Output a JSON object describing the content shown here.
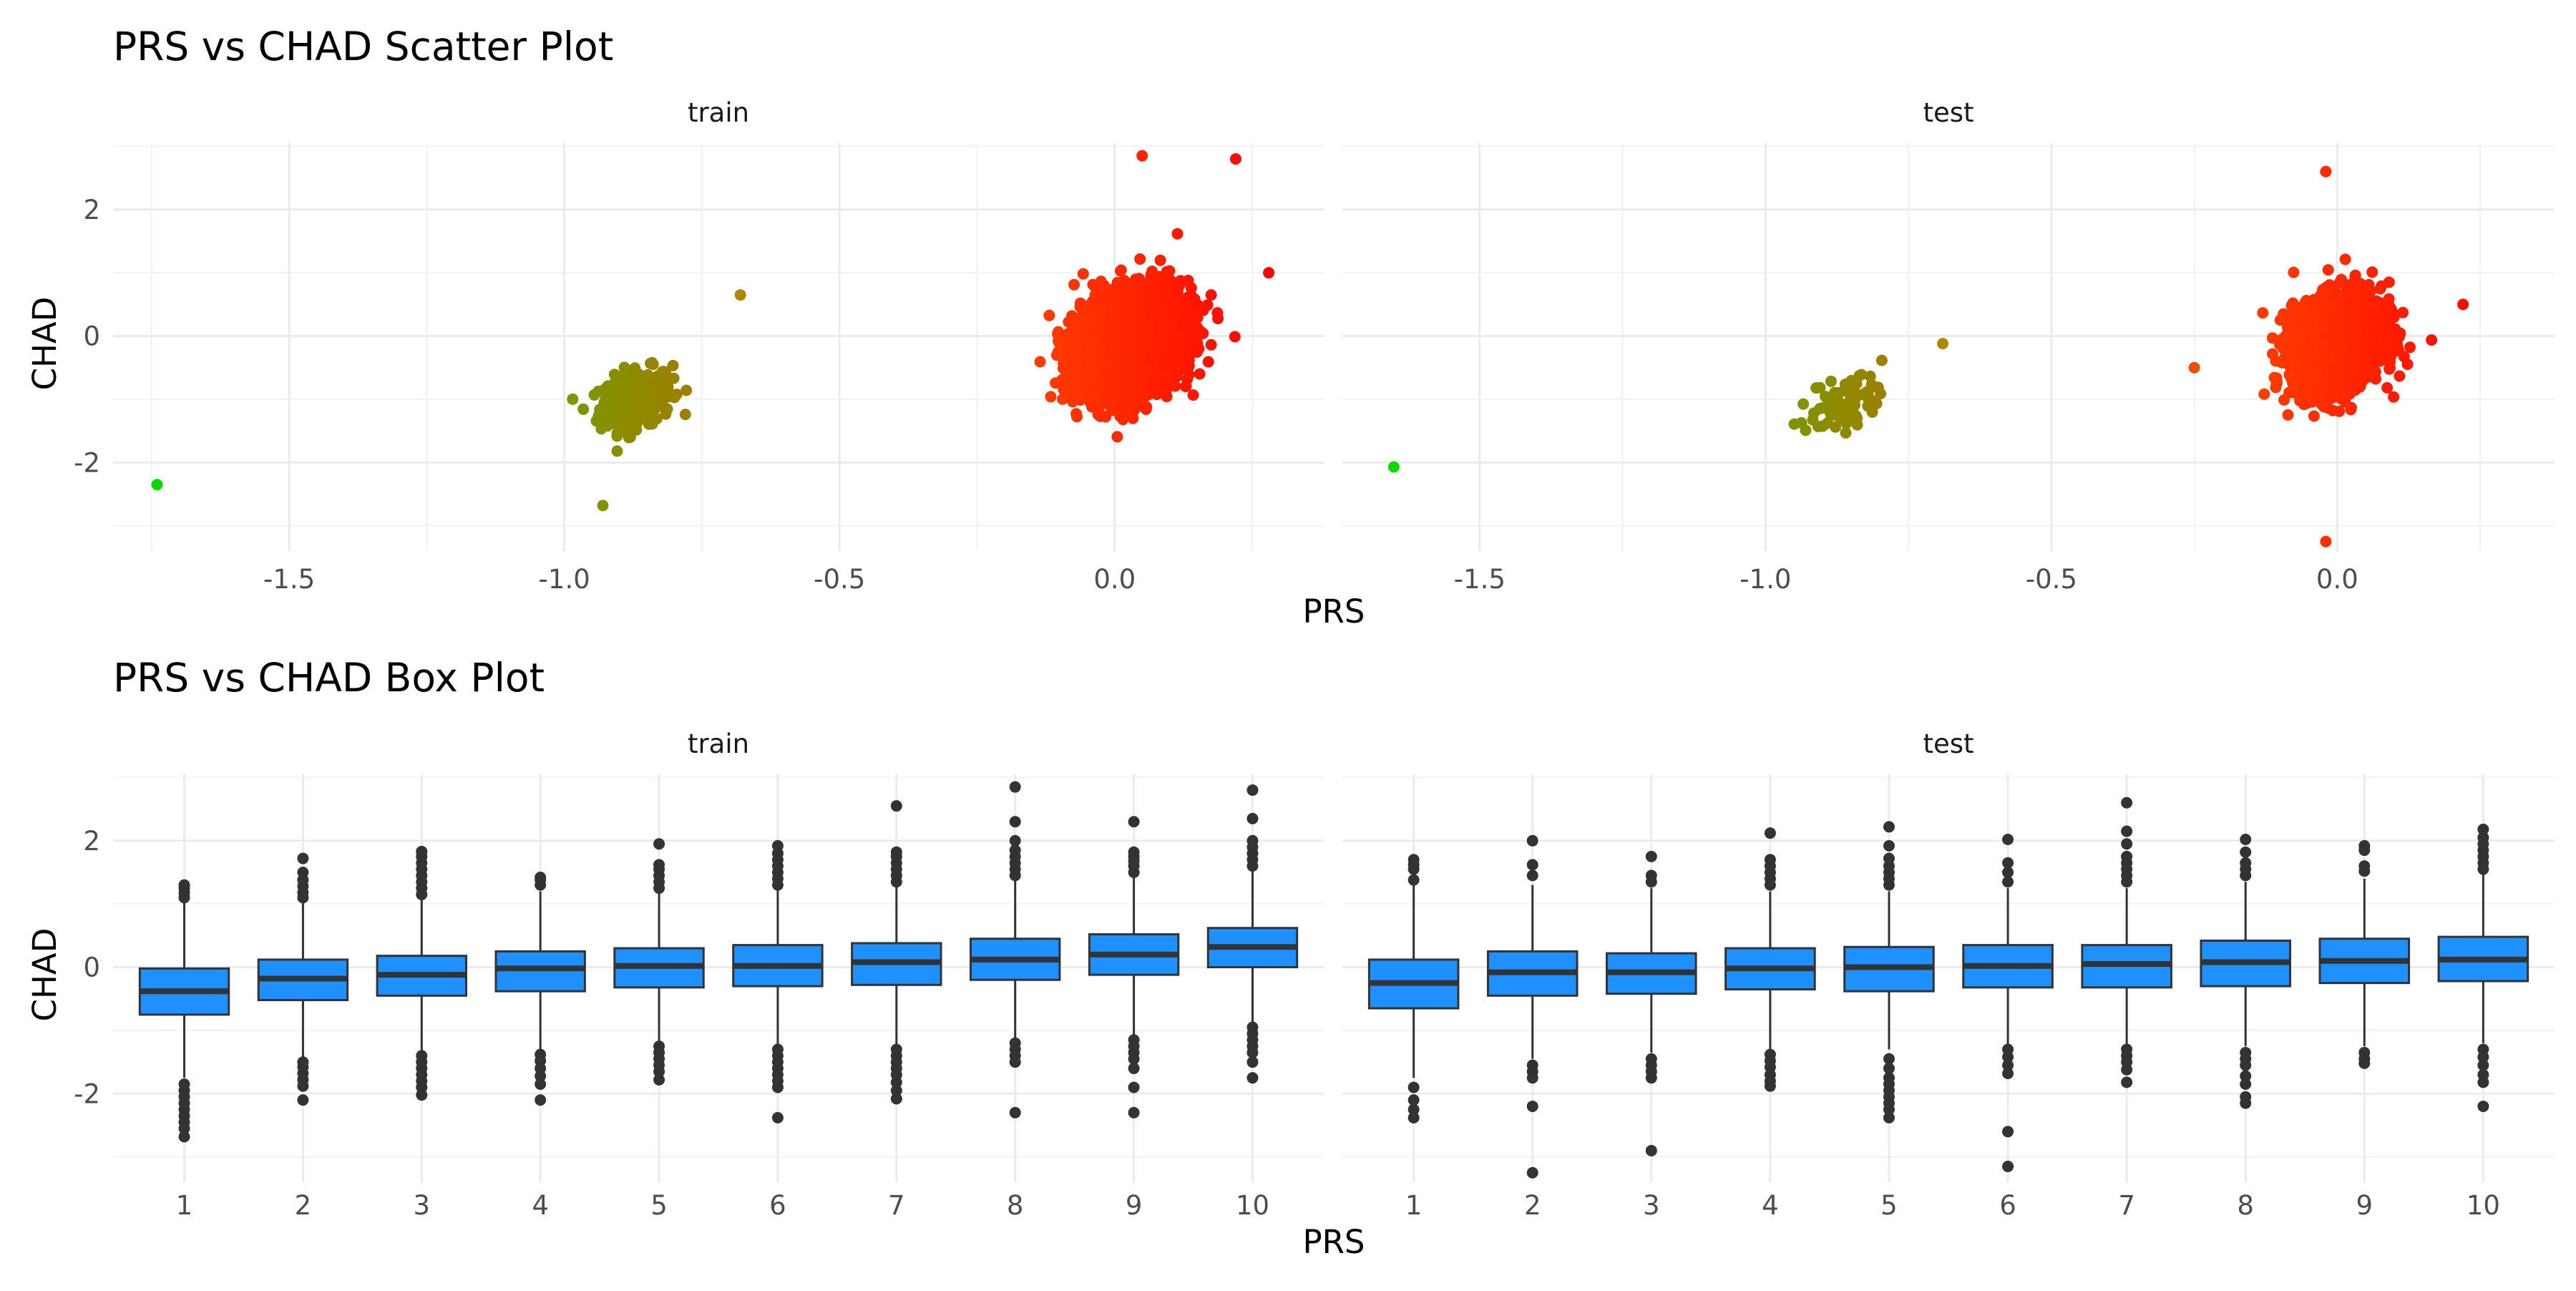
{
  "scatter_title": "PRS vs CHAD Scatter Plot",
  "box_title": "PRS vs CHAD Box Plot",
  "panels": [
    "train",
    "test"
  ],
  "xlabel": "PRS",
  "ylabel": "CHAD",
  "colors": {
    "box_fill": "#1E90FF",
    "box_line": "#333333",
    "outlier": "#333333",
    "grid": "#ebebeb",
    "gradient_low": "#00FF00",
    "gradient_high": "#FF0000"
  },
  "chart_data": [
    {
      "type": "scatter",
      "title": "PRS vs CHAD Scatter Plot",
      "xlabel": "PRS",
      "ylabel": "CHAD",
      "facets": [
        "train",
        "test"
      ],
      "color_mapping": "gradient by PRS (green at low PRS to red at high PRS), no legend shown",
      "xticks": [
        "-1.5",
        "-1.0",
        "-0.5",
        "0.0"
      ],
      "yticks": [
        "-2",
        "0",
        "2"
      ],
      "xlim": [
        -1.78,
        0.38
      ],
      "ylim": [
        -3.4,
        3.05
      ],
      "series": [
        {
          "facet": "train",
          "clusters": [
            {
              "center": [
                -1.74,
                -2.35
              ],
              "spread": [
                0.0,
                0.0
              ],
              "approx_points": 1
            },
            {
              "center": [
                -0.87,
                -1.0
              ],
              "spread": [
                0.06,
                0.4
              ],
              "approx_points": 300
            },
            {
              "center": [
                0.03,
                -0.1
              ],
              "spread": [
                0.08,
                0.65
              ],
              "approx_points": 6000
            }
          ],
          "extremes": [
            [
              0.22,
              2.8
            ],
            [
              0.28,
              1.0
            ],
            [
              -0.93,
              -2.68
            ],
            [
              -0.68,
              0.65
            ],
            [
              0.05,
              2.85
            ]
          ]
        },
        {
          "facet": "test",
          "clusters": [
            {
              "center": [
                -1.65,
                -2.07
              ],
              "spread": [
                0.0,
                0.0
              ],
              "approx_points": 1
            },
            {
              "center": [
                -0.86,
                -1.05
              ],
              "spread": [
                0.06,
                0.4
              ],
              "approx_points": 80
            },
            {
              "center": [
                0.0,
                -0.1
              ],
              "spread": [
                0.07,
                0.65
              ],
              "approx_points": 2500
            }
          ],
          "extremes": [
            [
              -0.02,
              2.6
            ],
            [
              -0.02,
              -3.25
            ],
            [
              0.22,
              0.5
            ],
            [
              -0.25,
              -0.5
            ],
            [
              -0.69,
              -0.12
            ]
          ]
        }
      ]
    },
    {
      "type": "box",
      "title": "PRS vs CHAD Box Plot",
      "xlabel": "PRS",
      "ylabel": "CHAD",
      "facets": [
        "train",
        "test"
      ],
      "categories": [
        "1",
        "2",
        "3",
        "4",
        "5",
        "6",
        "7",
        "8",
        "9",
        "10"
      ],
      "yticks": [
        "-2",
        "0",
        "2"
      ],
      "ylim": [
        -3.4,
        3.05
      ],
      "series": [
        {
          "facet": "train",
          "boxes": [
            {
              "q1": -0.75,
              "median": -0.38,
              "q3": -0.02,
              "whisker_low": -1.75,
              "whisker_high": 1.05,
              "outliers": [
                -1.85,
                -1.95,
                -2.05,
                -2.15,
                -2.25,
                -2.35,
                -2.45,
                -2.55,
                -2.68,
                1.1,
                1.18,
                1.25,
                1.3
              ]
            },
            {
              "q1": -0.52,
              "median": -0.18,
              "q3": 0.12,
              "whisker_low": -1.45,
              "whisker_high": 1.05,
              "outliers": [
                -1.5,
                -1.58,
                -1.68,
                -1.78,
                -1.88,
                -2.1,
                1.1,
                1.18,
                1.28,
                1.38,
                1.5,
                1.72
              ]
            },
            {
              "q1": -0.45,
              "median": -0.12,
              "q3": 0.18,
              "whisker_low": -1.35,
              "whisker_high": 1.1,
              "outliers": [
                -1.4,
                -1.5,
                -1.6,
                -1.7,
                -1.8,
                -1.9,
                -2.02,
                1.15,
                1.25,
                1.35,
                1.45,
                1.55,
                1.65,
                1.75,
                1.83
              ]
            },
            {
              "q1": -0.38,
              "median": -0.02,
              "q3": 0.25,
              "whisker_low": -1.3,
              "whisker_high": 1.2,
              "outliers": [
                -1.38,
                -1.48,
                -1.6,
                -1.72,
                -1.85,
                -2.1,
                1.3,
                1.38,
                1.42
              ]
            },
            {
              "q1": -0.32,
              "median": 0.02,
              "q3": 0.3,
              "whisker_low": -1.2,
              "whisker_high": 1.2,
              "outliers": [
                -1.25,
                -1.35,
                -1.45,
                -1.55,
                -1.65,
                -1.78,
                1.25,
                1.35,
                1.45,
                1.55,
                1.62,
                1.95
              ]
            },
            {
              "q1": -0.3,
              "median": 0.02,
              "q3": 0.35,
              "whisker_low": -1.25,
              "whisker_high": 1.25,
              "outliers": [
                -1.3,
                -1.4,
                -1.5,
                -1.6,
                -1.7,
                -1.8,
                -1.9,
                -2.38,
                1.3,
                1.4,
                1.5,
                1.6,
                1.7,
                1.8,
                1.92
              ]
            },
            {
              "q1": -0.28,
              "median": 0.08,
              "q3": 0.38,
              "whisker_low": -1.25,
              "whisker_high": 1.3,
              "outliers": [
                -1.3,
                -1.4,
                -1.5,
                -1.6,
                -1.7,
                -1.82,
                -1.95,
                -2.08,
                1.35,
                1.45,
                1.55,
                1.65,
                1.75,
                1.82,
                2.55
              ]
            },
            {
              "q1": -0.2,
              "median": 0.12,
              "q3": 0.45,
              "whisker_low": -1.15,
              "whisker_high": 1.4,
              "outliers": [
                -1.2,
                -1.3,
                -1.4,
                -1.5,
                -2.3,
                1.45,
                1.55,
                1.65,
                1.75,
                1.85,
                2.0,
                2.3,
                2.85
              ]
            },
            {
              "q1": -0.12,
              "median": 0.2,
              "q3": 0.52,
              "whisker_low": -1.1,
              "whisker_high": 1.45,
              "outliers": [
                -1.15,
                -1.25,
                -1.35,
                -1.45,
                -1.6,
                -1.9,
                -2.3,
                1.5,
                1.6,
                1.68,
                1.75,
                1.82,
                2.3
              ]
            },
            {
              "q1": 0.0,
              "median": 0.32,
              "q3": 0.62,
              "whisker_low": -0.9,
              "whisker_high": 1.55,
              "outliers": [
                -0.95,
                -1.05,
                -1.15,
                -1.25,
                -1.35,
                -1.5,
                -1.75,
                1.6,
                1.7,
                1.8,
                1.9,
                2.0,
                2.35,
                2.8
              ]
            }
          ]
        },
        {
          "facet": "test",
          "boxes": [
            {
              "q1": -0.65,
              "median": -0.25,
              "q3": 0.12,
              "whisker_low": -1.75,
              "whisker_high": 1.35,
              "outliers": [
                -1.9,
                -2.1,
                -2.25,
                -2.38,
                1.38,
                1.55,
                1.62,
                1.7
              ]
            },
            {
              "q1": -0.45,
              "median": -0.08,
              "q3": 0.25,
              "whisker_low": -1.45,
              "whisker_high": 1.3,
              "outliers": [
                -1.55,
                -1.65,
                -1.75,
                -2.2,
                -3.25,
                1.45,
                1.62,
                2.0
              ]
            },
            {
              "q1": -0.42,
              "median": -0.08,
              "q3": 0.22,
              "whisker_low": -1.35,
              "whisker_high": 1.25,
              "outliers": [
                -1.45,
                -1.55,
                -1.65,
                -1.75,
                -2.9,
                1.35,
                1.45,
                1.75
              ]
            },
            {
              "q1": -0.35,
              "median": -0.02,
              "q3": 0.3,
              "whisker_low": -1.3,
              "whisker_high": 1.2,
              "outliers": [
                -1.38,
                -1.48,
                -1.58,
                -1.7,
                -1.8,
                -1.88,
                1.3,
                1.4,
                1.5,
                1.6,
                1.7,
                2.12
              ]
            },
            {
              "q1": -0.38,
              "median": 0.0,
              "q3": 0.32,
              "whisker_low": -1.3,
              "whisker_high": 1.2,
              "outliers": [
                -1.45,
                -1.6,
                -1.75,
                -1.85,
                -1.95,
                -2.05,
                -2.15,
                -2.25,
                -2.38,
                1.3,
                1.4,
                1.5,
                1.6,
                1.72,
                1.92,
                2.22
              ]
            },
            {
              "q1": -0.32,
              "median": 0.02,
              "q3": 0.35,
              "whisker_low": -1.25,
              "whisker_high": 1.25,
              "outliers": [
                -1.3,
                -1.42,
                -1.55,
                -1.68,
                -2.6,
                -3.15,
                1.35,
                1.5,
                1.65,
                2.02
              ]
            },
            {
              "q1": -0.32,
              "median": 0.05,
              "q3": 0.35,
              "whisker_low": -1.25,
              "whisker_high": 1.25,
              "outliers": [
                -1.3,
                -1.4,
                -1.5,
                -1.62,
                -1.82,
                1.35,
                1.45,
                1.55,
                1.65,
                1.75,
                1.95,
                2.15,
                2.6
              ]
            },
            {
              "q1": -0.3,
              "median": 0.08,
              "q3": 0.42,
              "whisker_low": -1.25,
              "whisker_high": 1.35,
              "outliers": [
                -1.35,
                -1.45,
                -1.55,
                -1.72,
                -1.85,
                -2.05,
                -2.15,
                1.45,
                1.55,
                1.65,
                1.82,
                2.02
              ]
            },
            {
              "q1": -0.25,
              "median": 0.1,
              "q3": 0.45,
              "whisker_low": -1.25,
              "whisker_high": 1.4,
              "outliers": [
                -1.35,
                -1.45,
                -1.52,
                1.52,
                1.6,
                1.85,
                1.92
              ]
            },
            {
              "q1": -0.22,
              "median": 0.12,
              "q3": 0.48,
              "whisker_low": -1.2,
              "whisker_high": 1.5,
              "outliers": [
                -1.3,
                -1.42,
                -1.55,
                -1.7,
                -1.82,
                -2.2,
                1.55,
                1.65,
                1.75,
                1.85,
                1.95,
                2.05,
                2.18
              ]
            }
          ]
        }
      ]
    }
  ]
}
